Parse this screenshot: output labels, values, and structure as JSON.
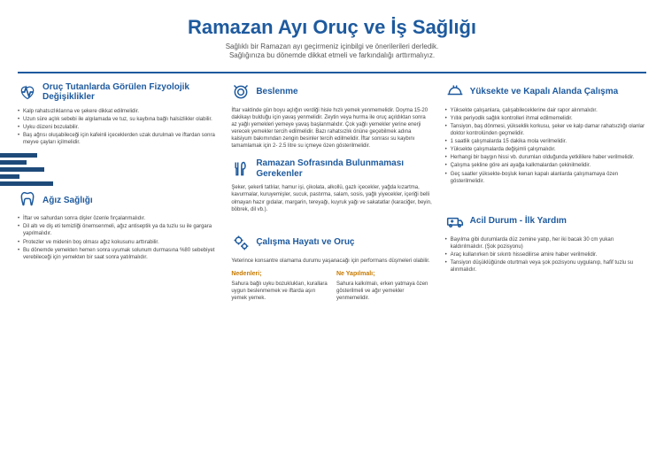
{
  "header": {
    "title": "Ramazan Ayı  Oruç ve İş Sağlığı",
    "subtitle1": "Sağlıklı bir Ramazan ayı geçirmeniz içinbilgi ve önerilerileri derledik.",
    "subtitle2": "Sağlığınıza bu dönemde dikkat etmeli ve farkındalığı arttırmalıyız."
  },
  "s1": {
    "title": "Oruç Tutanlarda Görülen Fizyolojik Değişiklikler",
    "items": [
      "Kalp rahatsızlıklarına ve şekere dikkat edilmelidir.",
      "Uzun süre açlık sebebi ile algılamada ve tuz, su kaybına bağlı halsizlikler olabilir.",
      "Uyku düzeni bozulabilir.",
      "Baş ağrısı oluşabileceği için kafeinli içeceklerden uzak durulmalı ve iftardan sonra meyve çayları içilmelidir."
    ]
  },
  "s2": {
    "title": "Beslenme",
    "text": "İftar vaktinde gün boyu açlığın verdiği hisle hızlı yemek yenmemelidir. Doyma 15-20 dakikayı bulduğu için yavaş yenmelidir. Zeytin veya hurma ile oruç açıldıktan sonra az yağlı yemekleri yemeye yavaş başlanmalıdır. Çok yağlı yemekler yerine enerji verecek yemekler tercih edilmelidir. Bazı rahatsızlık önüne geçebilmek adına kalsiyum bakımından zengin besinler tercih edilmelidir. İftar sonrası su kaybını tamamlamak için 2- 2.5 litre su içmeye özen gösterilmelidir."
  },
  "s3": {
    "title": "Yüksekte ve Kapalı Alanda Çalışma",
    "items": [
      "Yüksekte çalışanlara, çalışabileceklerine dair rapor alınmalıdır.",
      "Yıllık periyodik sağlık kontrolleri ihmal edilmemelidir.",
      "Tansiyon, baş dönmesi, yükseklik korkusu, şeker ve kalp damar rahatsızlığı olanlar doktor kontrolünden geçmelidir.",
      "1 saatlik çalışmalarda 15 dakika mola verilmelidir.",
      "Yüksekte çalışmalarda değişimli çalışmalıdır.",
      "Herhangi bir baygın hissi vb. durumları olduğunda yetkililere haber verilmelidir.",
      "Çalışma şekline göre ani ayağa kalkmalardan çekinilmelidir.",
      "Geç saatler yüksekte-boşluk kenarı kapalı alanlarda çalışmamaya özen gösterilmelidir."
    ]
  },
  "s4": {
    "title": "Ramazan Sofrasında Bulunmaması Gerekenler",
    "text": "Şeker, şekerli tatlılar, hamur işi, çikolata, alkollü, gazlı içecekler, yağda kızartma, kavurmalar, kuruyemişler, sucuk, pastırma, salam, sosis, yağlı yiyecekler, içeriği belli olmayan hazır gıdalar, margarin, tereyağı, kuyruk yağı ve sakatatlar (karaciğer, beyin, böbrek, dil vb.)."
  },
  "s5": {
    "title": "Ağız Sağlığı",
    "items": [
      "İftar ve sahurdan sonra dişler özenle fırçalanmalıdır.",
      "Dil altı ve diş eti temizliği önemsenmeli, ağız antiseptik ya da tuzlu su ile gargara yapılmalıdır.",
      "Protezler ve midenin boş olması ağız kokusunu arttırabilir.",
      "Bu dönemde yemekten hemen sonra uyumak solunum durmasına %80 sebebiyet verebileceği için yemekten bir saat sonra yatılmalıdır."
    ]
  },
  "s6": {
    "title": "Çalışma Hayatı ve Oruç",
    "text": "Yeterince konsantre olamama durumu yaşanacağı için performans düşmeleri olabilir.",
    "col1h": "Nedenleri;",
    "col1t": "Sahura bağlı uyku bozuklukları, kurallara uygun beslenmemek ve iftarda aşırı yemek yemek.",
    "col2h": "Ne Yapılmalı;",
    "col2t": "Sahura kalkılmalı, erken yatmaya özen gösterilmeli ve ağır yemekler yenmemelidir."
  },
  "s7": {
    "title": "Acil Durum - İlk Yardım",
    "items": [
      "Bayılma gibi durumlarda düz zemine yatıp, her iki bacak 30 cm yukarı kaldırılmalıdır. (Şok pozisyonu)",
      "Araç kullanırken bir sıkıntı hissedilirse amire haber verilmelidir.",
      "Tansiyon düşüklüğünde oturtmalı veya şok pozisyonu uygulanıp, hafif tuzlu su alınmalıdır."
    ]
  },
  "colors": {
    "primary": "#1e5a9e",
    "accent": "#c77a00",
    "text": "#444"
  }
}
